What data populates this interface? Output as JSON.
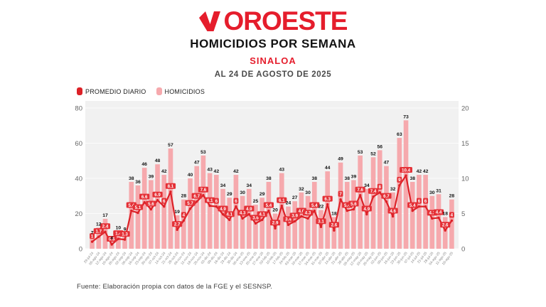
{
  "header": {
    "logo_text": "NOROESTE",
    "title": "HOMICIDIOS POR SEMANA",
    "subtitle": "SINALOA",
    "date_line": "AL 24 DE AGOSTO DE 2025"
  },
  "legend": [
    {
      "label": "PROMEDIO DIARIO",
      "color": "#dc2127"
    },
    {
      "label": "HOMICIDIOS",
      "color": "#f6a9ad"
    }
  ],
  "colors": {
    "accent_red": "#e51d2c",
    "bar_pink": "#f6a9ad",
    "line_red": "#dc2127",
    "label_box_red": "#e43036",
    "plot_bg": "#f1f1f1",
    "grid": "#fbfbfb",
    "axis_text": "#666666",
    "x_label_text": "#8a8a8a",
    "bar_label_text": "#111111"
  },
  "chart_data": {
    "type": "bar",
    "title": "HOMICIDIOS POR SEMANA - SINALOA - AL 24 DE AGOSTO DE 2025",
    "xlabel": "",
    "ylabel": "",
    "left_axis": {
      "ticks": [
        0,
        20,
        40,
        60,
        80
      ],
      "max": 80
    },
    "right_axis": {
      "ticks": [
        0,
        5,
        10,
        15,
        20
      ],
      "max": 20
    },
    "legend_position": "top-left",
    "categories": [
      "29-jul-24",
      "05-ago-24",
      "12-ago-24",
      "19-ago-24",
      "26-ago-24",
      "02-sep-24",
      "09-sep-24",
      "16-sep-24",
      "23-sep-24",
      "30-sep-24",
      "07-oct-24",
      "14-oct-24",
      "21-oct-24",
      "28-oct-24",
      "04-nov-24",
      "11-nov-24",
      "18-nov-24",
      "25-nov-24",
      "02-dic-24",
      "09-dic-24",
      "16-dic-24",
      "23-dic-24",
      "30-dic-24",
      "06-ene-25",
      "13-ene-25",
      "20-ene-25",
      "27-ene-25",
      "03-feb-25",
      "10-feb-25",
      "17-feb-25",
      "24-feb-25",
      "03-mar-25",
      "10-mar-25",
      "17-mar-25",
      "24-mar-25",
      "31-mar-25",
      "07-abr-25",
      "14-abr-25",
      "21-abr-25",
      "28-abr-25",
      "05-may-25",
      "12-may-25",
      "19-may-25",
      "26-may-25",
      "02-jun-25",
      "09-jun-25",
      "16-jun-25",
      "23-jun-25",
      "30-jun-25",
      "07-jul-25",
      "14-jul-25",
      "21-jul-25",
      "28-jul-25",
      "04-ago-25",
      "11-ago-25",
      "18-ago-25"
    ],
    "series": [
      {
        "name": "HOMICIDIOS",
        "type": "bar",
        "axis": "left",
        "values": [
          7,
          12,
          17,
          4,
          10,
          9,
          38,
          36,
          46,
          39,
          48,
          42,
          57,
          19,
          28,
          40,
          47,
          53,
          43,
          42,
          34,
          29,
          42,
          30,
          34,
          25,
          29,
          38,
          20,
          43,
          24,
          27,
          32,
          30,
          38,
          22,
          44,
          18,
          49,
          38,
          39,
          53,
          34,
          52,
          56,
          47,
          32,
          63,
          73,
          38,
          42,
          42,
          30,
          31,
          18,
          28
        ]
      },
      {
        "name": "PROMEDIO DIARIO",
        "type": "line",
        "axis": "right",
        "values": [
          1.0,
          1.7,
          2.4,
          0.6,
          1.4,
          1.3,
          5.4,
          5.1,
          6.6,
          5.6,
          6.9,
          6.0,
          8.1,
          2.7,
          4.0,
          5.7,
          6.7,
          7.6,
          6.1,
          6.0,
          4.9,
          4.1,
          6.0,
          4.3,
          4.9,
          3.6,
          4.1,
          5.4,
          2.9,
          6.1,
          3.4,
          3.9,
          4.6,
          4.3,
          5.4,
          3.1,
          6.3,
          2.6,
          7.0,
          5.4,
          5.6,
          7.6,
          4.9,
          7.4,
          8.0,
          6.7,
          4.6,
          9.0,
          10.4,
          5.4,
          6.0,
          6.0,
          4.3,
          4.4,
          2.6,
          4.0
        ],
        "labels": [
          "1",
          "1.7",
          "2.4",
          "0.6",
          "1.4",
          "1.3",
          "5.4",
          "5.1",
          "6.6",
          "5.6",
          "6.9",
          "6",
          "8.1",
          "2.7",
          "4",
          "5.7",
          "6.7",
          "7.6",
          "6.1",
          "6",
          "4.9",
          "4.1",
          "6",
          "4.3",
          "4.9",
          "3.6",
          "4.1",
          "5.4",
          "2.9",
          "6.1",
          "3.4",
          "3.9",
          "4.6",
          "4.3",
          "5.4",
          "3.1",
          "6.3",
          "2.6",
          "7",
          "5.4",
          "5.6",
          "7.6",
          "4.9",
          "7.4",
          "8",
          "6.7",
          "4.6",
          "9",
          "10.4",
          "5.4",
          "6",
          "6",
          "4.3",
          "4.4",
          "2.6",
          "4"
        ]
      }
    ]
  },
  "footer": {
    "source": "Fuente: Elaboración propia con datos de la FGE y el SESNSP."
  }
}
